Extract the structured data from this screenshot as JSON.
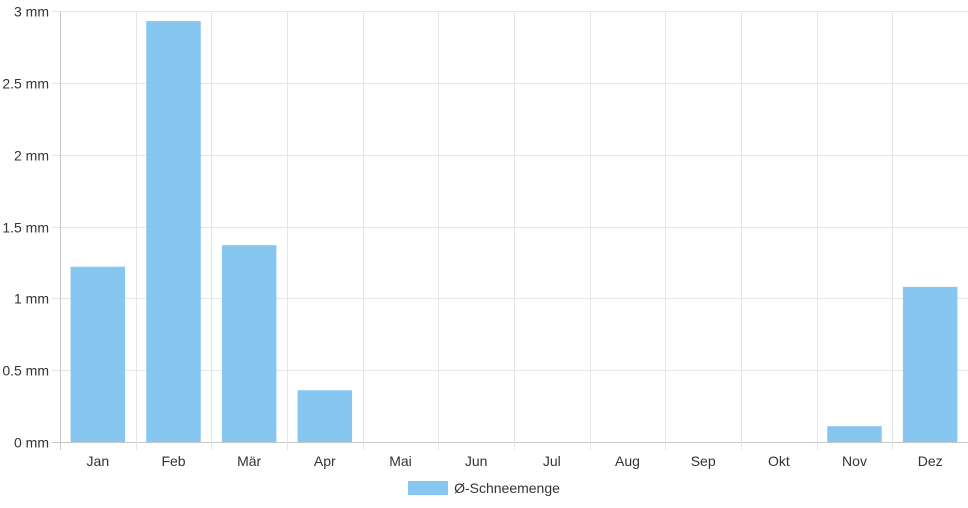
{
  "chart_data": {
    "type": "bar",
    "categories": [
      "Jan",
      "Feb",
      "Mär",
      "Apr",
      "Mai",
      "Jun",
      "Jul",
      "Aug",
      "Sep",
      "Okt",
      "Nov",
      "Dez"
    ],
    "series": [
      {
        "name": "Ø-Schneemenge",
        "values": [
          1.22,
          2.93,
          1.37,
          0.36,
          0,
          0,
          0,
          0,
          0,
          0,
          0.11,
          1.08
        ],
        "color": "#87c6f1"
      }
    ],
    "y_ticks": [
      "0 mm",
      "0.5 mm",
      "1 mm",
      "1.5 mm",
      "2 mm",
      "2.5 mm",
      "3 mm"
    ],
    "ylim": [
      0,
      3
    ],
    "grid": true,
    "legend_position": "bottom"
  }
}
